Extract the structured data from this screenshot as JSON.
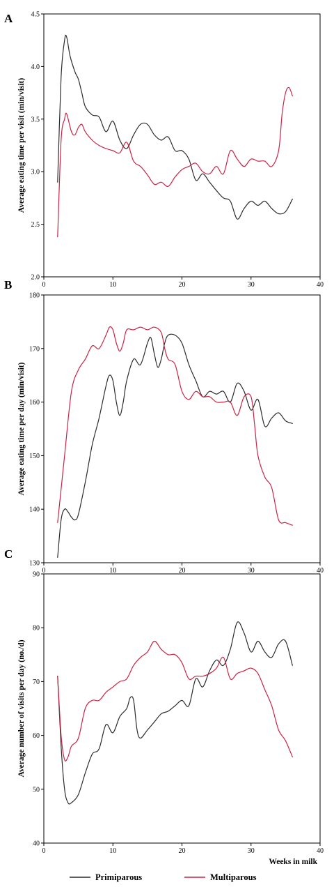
{
  "colors": {
    "primiparous": "#2b2b2b",
    "multiparous": "#cc2244",
    "axis": "#000000"
  },
  "legend": {
    "primiparous": "Primiparous",
    "multiparous": "Multiparous"
  },
  "chart_data": [
    {
      "type": "line",
      "panel": "A",
      "xlabel": "",
      "ylabel": "Average eating time per visit (min/visit)",
      "xlim": [
        0,
        40
      ],
      "ylim": [
        2.0,
        4.5
      ],
      "xticks": [
        0,
        10,
        20,
        30,
        40
      ],
      "yticks": [
        2.0,
        2.5,
        3.0,
        3.5,
        4.0,
        4.5
      ],
      "ytick_labels": [
        "2.0",
        "2.5",
        "3.0",
        "3.5",
        "4.0",
        "4.5"
      ],
      "grid": false,
      "series": [
        {
          "name": "Primiparous",
          "color_key": "primiparous",
          "x": [
            2,
            2.5,
            3,
            3.3,
            3.8,
            4.5,
            5,
            5.5,
            6,
            7,
            8,
            9,
            10,
            11,
            12,
            13,
            14,
            15,
            16,
            17,
            18,
            19,
            20,
            21,
            22,
            23,
            24,
            25,
            26,
            27,
            28,
            29,
            30,
            31,
            32,
            33,
            34,
            35,
            36
          ],
          "y": [
            2.9,
            3.9,
            4.25,
            4.28,
            4.1,
            3.95,
            3.88,
            3.75,
            3.62,
            3.54,
            3.52,
            3.38,
            3.48,
            3.3,
            3.22,
            3.35,
            3.45,
            3.45,
            3.35,
            3.3,
            3.33,
            3.2,
            3.2,
            3.12,
            2.92,
            2.98,
            2.9,
            2.82,
            2.75,
            2.72,
            2.55,
            2.65,
            2.72,
            2.68,
            2.72,
            2.65,
            2.6,
            2.62,
            2.74
          ]
        },
        {
          "name": "Multiparous",
          "color_key": "multiparous",
          "x": [
            2,
            2.5,
            3,
            3.3,
            4,
            4.5,
            5,
            5.5,
            6,
            7,
            8,
            9,
            10,
            11,
            12,
            13,
            14,
            15,
            16,
            17,
            18,
            19,
            20,
            21,
            22,
            23,
            24,
            25,
            26,
            27,
            28,
            29,
            30,
            31,
            32,
            33,
            34,
            34.5,
            35,
            35.5,
            36
          ],
          "y": [
            2.38,
            3.3,
            3.5,
            3.55,
            3.38,
            3.35,
            3.42,
            3.45,
            3.38,
            3.3,
            3.25,
            3.22,
            3.2,
            3.18,
            3.28,
            3.1,
            3.05,
            2.97,
            2.88,
            2.9,
            2.86,
            2.95,
            3.02,
            3.05,
            3.08,
            3.0,
            2.98,
            3.05,
            2.98,
            3.2,
            3.12,
            3.05,
            3.12,
            3.1,
            3.1,
            3.05,
            3.2,
            3.55,
            3.75,
            3.8,
            3.72
          ]
        }
      ]
    },
    {
      "type": "line",
      "panel": "B",
      "xlabel": "",
      "ylabel": "Average eating time per day (min/visit)",
      "xlim": [
        0,
        40
      ],
      "ylim": [
        130,
        180
      ],
      "xticks": [
        0,
        10,
        20,
        30,
        40
      ],
      "yticks": [
        130,
        140,
        150,
        160,
        170,
        180
      ],
      "ytick_labels": [
        "130",
        "140",
        "150",
        "160",
        "170",
        "180"
      ],
      "grid": false,
      "series": [
        {
          "name": "Primiparous",
          "color_key": "primiparous",
          "x": [
            2,
            2.5,
            3,
            3.5,
            4,
            4.5,
            5,
            6,
            7,
            8,
            9,
            9.5,
            10,
            10.5,
            11,
            11.5,
            12,
            13,
            14,
            15,
            15.5,
            16,
            16.5,
            17,
            17.5,
            18,
            19,
            20,
            21,
            22,
            23,
            24,
            25,
            26,
            27,
            28,
            29,
            30,
            31,
            32,
            33,
            34,
            35,
            36
          ],
          "y": [
            131,
            138,
            140,
            139.5,
            138.5,
            138,
            139,
            145,
            152,
            157,
            163,
            165,
            164,
            160,
            157.5,
            160,
            164,
            168,
            167,
            171,
            172,
            169,
            166.5,
            168,
            171,
            172.5,
            172.5,
            171,
            167,
            164,
            161,
            162,
            161.5,
            162,
            160,
            163.5,
            162,
            158.5,
            160.5,
            155.5,
            157,
            158,
            156.5,
            156
          ]
        },
        {
          "name": "Multiparous",
          "color_key": "multiparous",
          "x": [
            2,
            3,
            4,
            5,
            6,
            7,
            8,
            9,
            9.5,
            10,
            10.5,
            11,
            11.5,
            12,
            13,
            14,
            15,
            16,
            17,
            17.5,
            18,
            19,
            20,
            21,
            22,
            23,
            24,
            25,
            26,
            27,
            28,
            29,
            30,
            30.5,
            31,
            32,
            33,
            34,
            35,
            36
          ],
          "y": [
            137.5,
            150,
            162,
            166,
            168,
            170.5,
            170,
            172.5,
            174,
            173.5,
            171,
            169.5,
            171,
            173.5,
            173.5,
            174,
            173.5,
            174,
            173,
            170,
            168,
            167,
            162,
            160.5,
            162,
            161,
            161,
            160,
            160,
            160,
            157.5,
            161,
            161,
            156,
            150,
            146,
            144,
            138,
            137.5,
            137
          ]
        }
      ]
    },
    {
      "type": "line",
      "panel": "C",
      "xlabel": "Weeks in milk",
      "ylabel": "Average number of visits per day (no./d)",
      "xlim": [
        0,
        40
      ],
      "ylim": [
        40,
        90
      ],
      "xticks": [
        0,
        10,
        20,
        30,
        40
      ],
      "yticks": [
        40,
        50,
        60,
        70,
        80,
        90
      ],
      "ytick_labels": [
        "40",
        "50",
        "60",
        "70",
        "80",
        "90"
      ],
      "grid": false,
      "series": [
        {
          "name": "Primiparous",
          "color_key": "primiparous",
          "x": [
            2,
            2.5,
            3,
            3.5,
            4,
            5,
            6,
            7,
            8,
            9,
            10,
            11,
            12,
            12.5,
            13,
            13.5,
            14,
            15,
            16,
            17,
            18,
            19,
            20,
            21,
            22,
            23,
            24,
            25,
            26,
            27,
            28,
            29,
            30,
            31,
            32,
            33,
            34,
            35,
            36
          ],
          "y": [
            71,
            58,
            50,
            47.5,
            47.5,
            49,
            53,
            56.5,
            57.5,
            62,
            60.5,
            63.5,
            65,
            67,
            66.5,
            61,
            59.5,
            61,
            62.5,
            64,
            64.5,
            65.5,
            66.5,
            65.5,
            70.5,
            69,
            72,
            74,
            73,
            76,
            81,
            79,
            75.5,
            77.5,
            75.5,
            74.5,
            77,
            77.5,
            73
          ]
        },
        {
          "name": "Multiparous",
          "color_key": "multiparous",
          "x": [
            2,
            2.5,
            3,
            3.5,
            4,
            5,
            6,
            7,
            8,
            9,
            10,
            11,
            12,
            13,
            14,
            15,
            16,
            17,
            18,
            19,
            20,
            21,
            22,
            23,
            24,
            25,
            26,
            27,
            28,
            29,
            30,
            31,
            32,
            33,
            34,
            35,
            36
          ],
          "y": [
            71,
            60,
            55.5,
            56,
            58,
            59.5,
            65,
            66.5,
            66.5,
            68,
            69,
            70,
            70.5,
            73,
            74.5,
            75.5,
            77.5,
            76,
            75,
            75,
            73.5,
            70.5,
            71,
            71,
            71.5,
            72.5,
            74.5,
            70.5,
            71.5,
            72,
            72.5,
            71.5,
            68.5,
            65.5,
            61,
            59,
            56
          ]
        }
      ]
    }
  ]
}
